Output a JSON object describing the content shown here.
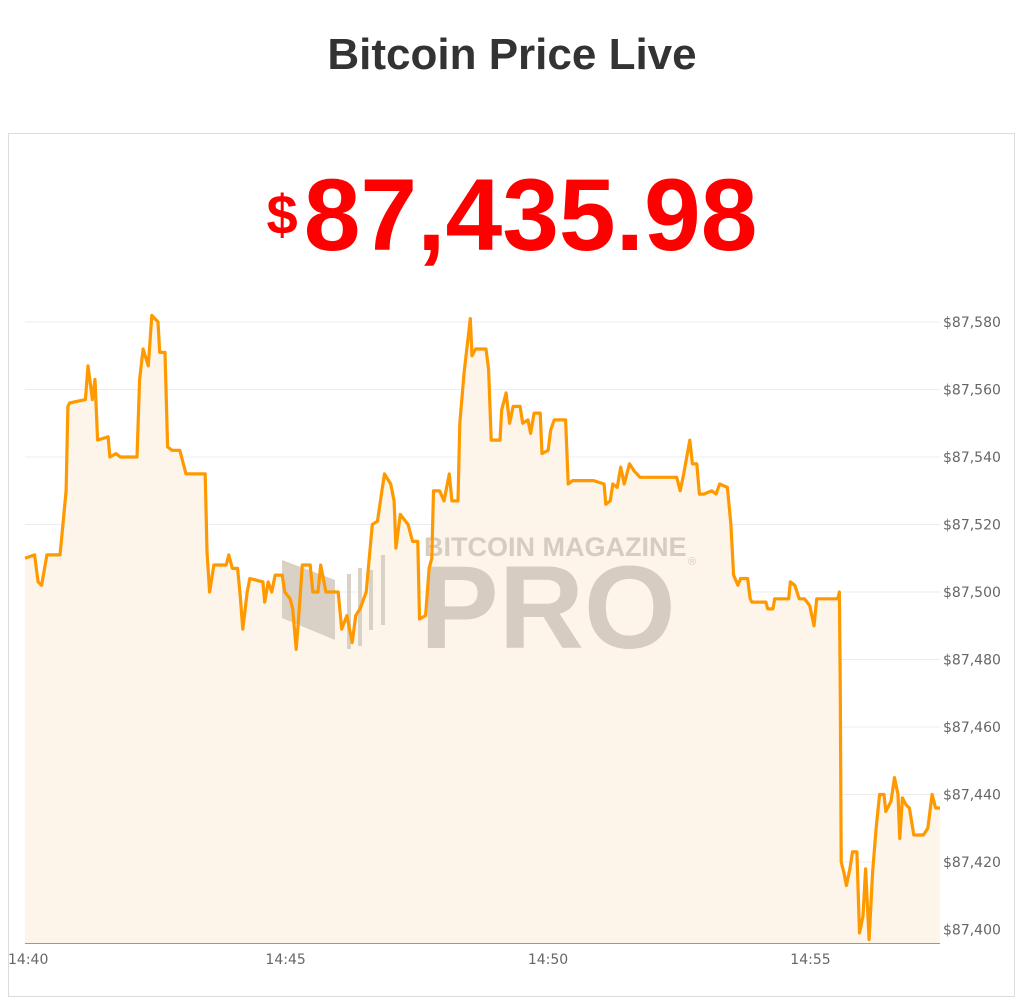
{
  "page": {
    "title": "Bitcoin Price Live"
  },
  "price": {
    "currency_symbol": "$",
    "value": "87,435.98",
    "color": "#ff0000"
  },
  "watermark": {
    "line1": "BITCOIN MAGAZINE",
    "line2": "PRO",
    "registered": "®"
  },
  "chart_data": {
    "type": "area",
    "title": "",
    "xlabel": "",
    "ylabel": "",
    "line_color": "#ff9900",
    "fill_color": "#fdf4ea",
    "grid": true,
    "y_axis_position": "right",
    "xlim": [
      "14:40:00",
      "14:57:26"
    ],
    "ylim": [
      87396,
      87587
    ],
    "x_ticks": [
      "14:40",
      "14:45",
      "14:50",
      "14:55"
    ],
    "y_ticks": [
      87580,
      87560,
      87540,
      87520,
      87500,
      87480,
      87460,
      87440,
      87420,
      87400
    ],
    "y_tick_labels": [
      "$87,580",
      "$87,560",
      "$87,540",
      "$87,520",
      "$87,500",
      "$87,480",
      "$87,460",
      "$87,440",
      "$87,420",
      "$87,400"
    ],
    "series": [
      {
        "points": [
          [
            "14:40:00",
            87510
          ],
          [
            "14:40:11",
            87511
          ],
          [
            "14:40:15",
            87503
          ],
          [
            "14:40:19",
            87502
          ],
          [
            "14:40:25",
            87511
          ],
          [
            "14:40:40",
            87511
          ],
          [
            "14:40:43",
            87519
          ],
          [
            "14:40:47",
            87530
          ],
          [
            "14:40:49",
            87555
          ],
          [
            "14:40:51",
            87556
          ],
          [
            "14:41:09",
            87557
          ],
          [
            "14:41:12",
            87567
          ],
          [
            "14:41:17",
            87557
          ],
          [
            "14:41:20",
            87563
          ],
          [
            "14:41:23",
            87545
          ],
          [
            "14:41:35",
            87546
          ],
          [
            "14:41:37",
            87540
          ],
          [
            "14:41:44",
            87541
          ],
          [
            "14:41:49",
            87540
          ],
          [
            "14:42:08",
            87540
          ],
          [
            "14:42:11",
            87563
          ],
          [
            "14:42:15",
            87572
          ],
          [
            "14:42:21",
            87567
          ],
          [
            "14:42:25",
            87582
          ],
          [
            "14:42:32",
            87580
          ],
          [
            "14:42:34",
            87571
          ],
          [
            "14:42:40",
            87571
          ],
          [
            "14:42:43",
            87543
          ],
          [
            "14:42:48",
            87542
          ],
          [
            "14:42:57",
            87542
          ],
          [
            "14:43:04",
            87535
          ],
          [
            "14:43:26",
            87535
          ],
          [
            "14:43:28",
            87512
          ],
          [
            "14:43:31",
            87500
          ],
          [
            "14:43:36",
            87508
          ],
          [
            "14:43:50",
            87508
          ],
          [
            "14:43:53",
            87511
          ],
          [
            "14:43:57",
            87507
          ],
          [
            "14:44:03",
            87507
          ],
          [
            "14:44:06",
            87499
          ],
          [
            "14:44:09",
            87489
          ],
          [
            "14:44:14",
            87500
          ],
          [
            "14:44:17",
            87504
          ],
          [
            "14:44:32",
            87503
          ],
          [
            "14:44:34",
            87497
          ],
          [
            "14:44:38",
            87503
          ],
          [
            "14:44:42",
            87500
          ],
          [
            "14:44:46",
            87505
          ],
          [
            "14:44:54",
            87505
          ],
          [
            "14:44:57",
            87500
          ],
          [
            "14:45:03",
            87498
          ],
          [
            "14:45:06",
            87495
          ],
          [
            "14:45:10",
            87483
          ],
          [
            "14:45:13",
            87493
          ],
          [
            "14:45:17",
            87508
          ],
          [
            "14:45:26",
            87508
          ],
          [
            "14:45:29",
            87500
          ],
          [
            "14:45:35",
            87500
          ],
          [
            "14:45:38",
            87508
          ],
          [
            "14:45:44",
            87500
          ],
          [
            "14:45:58",
            87500
          ],
          [
            "14:46:02",
            87489
          ],
          [
            "14:46:08",
            87493
          ],
          [
            "14:46:14",
            87485
          ],
          [
            "14:46:18",
            87493
          ],
          [
            "14:46:23",
            87495
          ],
          [
            "14:46:30",
            87500
          ],
          [
            "14:46:37",
            87520
          ],
          [
            "14:46:43",
            87521
          ],
          [
            "14:46:48",
            87530
          ],
          [
            "14:46:51",
            87535
          ],
          [
            "14:46:58",
            87532
          ],
          [
            "14:47:02",
            87527
          ],
          [
            "14:47:04",
            87513
          ],
          [
            "14:47:09",
            87523
          ],
          [
            "14:47:12",
            87522
          ],
          [
            "14:47:18",
            87520
          ],
          [
            "14:47:23",
            87515
          ],
          [
            "14:47:29",
            87515
          ],
          [
            "14:47:31",
            87492
          ],
          [
            "14:47:38",
            87493
          ],
          [
            "14:47:42",
            87507
          ],
          [
            "14:47:45",
            87510
          ],
          [
            "14:47:47",
            87530
          ],
          [
            "14:47:54",
            87530
          ],
          [
            "14:47:59",
            87527
          ],
          [
            "14:48:05",
            87535
          ],
          [
            "14:48:08",
            87527
          ],
          [
            "14:48:15",
            87527
          ],
          [
            "14:48:17",
            87550
          ],
          [
            "14:48:22",
            87565
          ],
          [
            "14:48:25",
            87572
          ],
          [
            "14:48:29",
            87581
          ],
          [
            "14:48:31",
            87570
          ],
          [
            "14:48:35",
            87572
          ],
          [
            "14:48:47",
            87572
          ],
          [
            "14:48:50",
            87566
          ],
          [
            "14:48:53",
            87545
          ],
          [
            "14:49:03",
            87545
          ],
          [
            "14:49:05",
            87554
          ],
          [
            "14:49:10",
            87559
          ],
          [
            "14:49:14",
            87550
          ],
          [
            "14:49:18",
            87555
          ],
          [
            "14:49:26",
            87555
          ],
          [
            "14:49:29",
            87550
          ],
          [
            "14:49:35",
            87551
          ],
          [
            "14:49:38",
            87547
          ],
          [
            "14:49:42",
            87553
          ],
          [
            "14:49:49",
            87553
          ],
          [
            "14:49:51",
            87541
          ],
          [
            "14:49:58",
            87542
          ],
          [
            "14:50:01",
            87548
          ],
          [
            "14:50:05",
            87551
          ],
          [
            "14:50:18",
            87551
          ],
          [
            "14:50:21",
            87532
          ],
          [
            "14:50:26",
            87533
          ],
          [
            "14:50:50",
            87533
          ],
          [
            "14:51:02",
            87532
          ],
          [
            "14:51:04",
            87526
          ],
          [
            "14:51:09",
            87527
          ],
          [
            "14:51:12",
            87532
          ],
          [
            "14:51:17",
            87531
          ],
          [
            "14:51:21",
            87537
          ],
          [
            "14:51:25",
            87532
          ],
          [
            "14:51:31",
            87538
          ],
          [
            "14:51:36",
            87536
          ],
          [
            "14:51:43",
            87534
          ],
          [
            "14:52:25",
            87534
          ],
          [
            "14:52:29",
            87530
          ],
          [
            "14:52:33",
            87535
          ],
          [
            "14:52:40",
            87545
          ],
          [
            "14:52:43",
            87538
          ],
          [
            "14:52:48",
            87538
          ],
          [
            "14:52:51",
            87529
          ],
          [
            "14:52:56",
            87529
          ],
          [
            "14:53:05",
            87530
          ],
          [
            "14:53:10",
            87529
          ],
          [
            "14:53:14",
            87532
          ],
          [
            "14:53:23",
            87531
          ],
          [
            "14:53:27",
            87520
          ],
          [
            "14:53:30",
            87505
          ],
          [
            "14:53:35",
            87502
          ],
          [
            "14:53:38",
            87504
          ],
          [
            "14:53:46",
            87504
          ],
          [
            "14:53:49",
            87498
          ],
          [
            "14:53:51",
            87497
          ],
          [
            "14:54:07",
            87497
          ],
          [
            "14:54:09",
            87495
          ],
          [
            "14:54:15",
            87495
          ],
          [
            "14:54:17",
            87498
          ],
          [
            "14:54:33",
            87498
          ],
          [
            "14:54:35",
            87503
          ],
          [
            "14:54:40",
            87502
          ],
          [
            "14:54:45",
            87498
          ],
          [
            "14:54:51",
            87498
          ],
          [
            "14:54:57",
            87496
          ],
          [
            "14:55:02",
            87490
          ],
          [
            "14:55:05",
            87498
          ],
          [
            "14:55:09",
            87498
          ],
          [
            "14:55:29",
            87498
          ],
          [
            "14:55:31",
            87500
          ],
          [
            "14:55:32",
            87470
          ],
          [
            "14:55:33",
            87420
          ],
          [
            "14:55:36",
            87417
          ],
          [
            "14:55:39",
            87413
          ],
          [
            "14:55:43",
            87418
          ],
          [
            "14:55:46",
            87423
          ],
          [
            "14:55:51",
            87423
          ],
          [
            "14:55:54",
            87399
          ],
          [
            "14:55:58",
            87404
          ],
          [
            "14:56:01",
            87418
          ],
          [
            "14:56:05",
            87397
          ],
          [
            "14:56:09",
            87417
          ],
          [
            "14:56:13",
            87430
          ],
          [
            "14:56:17",
            87440
          ],
          [
            "14:56:22",
            87440
          ],
          [
            "14:56:24",
            87435
          ],
          [
            "14:56:30",
            87438
          ],
          [
            "14:56:34",
            87445
          ],
          [
            "14:56:38",
            87440
          ],
          [
            "14:56:40",
            87427
          ],
          [
            "14:56:43",
            87439
          ],
          [
            "14:56:47",
            87437
          ],
          [
            "14:56:51",
            87436
          ],
          [
            "14:56:56",
            87428
          ],
          [
            "14:57:07",
            87428
          ],
          [
            "14:57:12",
            87430
          ],
          [
            "14:57:17",
            87440
          ],
          [
            "14:57:21",
            87436
          ],
          [
            "14:57:26",
            87436
          ]
        ]
      }
    ]
  }
}
